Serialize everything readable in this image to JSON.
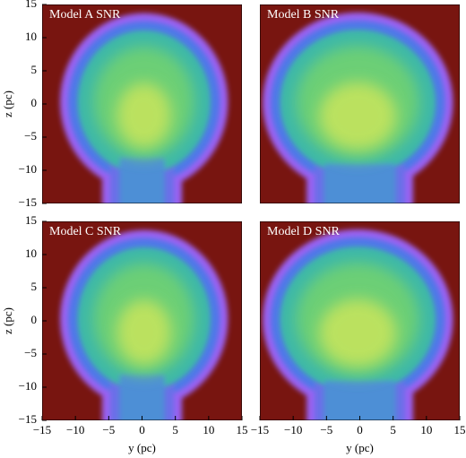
{
  "chart_data": [
    {
      "type": "image",
      "title": "Model A SNR",
      "ylabel": "z (pc)",
      "xlim": [
        -15,
        15
      ],
      "ylim": [
        -15,
        15
      ],
      "yticks": [
        15,
        10,
        5,
        0,
        {
          "value": -5,
          "label": "−5"
        },
        {
          "value": -10,
          "label": "−10"
        },
        {
          "value": -15,
          "label": "−15"
        }
      ]
    },
    {
      "type": "image",
      "title": "Model B SNR",
      "xlim": [
        -15,
        15
      ],
      "ylim": [
        -15,
        15
      ]
    },
    {
      "type": "image",
      "title": "Model C SNR",
      "xlabel": "y (pc)",
      "ylabel": "z (pc)",
      "xlim": [
        -15,
        15
      ],
      "ylim": [
        -15,
        15
      ],
      "xticks": [
        {
          "value": -15,
          "label": "−15"
        },
        {
          "value": -10,
          "label": "−10"
        },
        {
          "value": -5,
          "label": "−5"
        },
        0,
        5,
        10,
        15
      ],
      "yticks": [
        15,
        10,
        5,
        0,
        {
          "value": -5,
          "label": "−5"
        },
        {
          "value": -10,
          "label": "−10"
        },
        {
          "value": -15,
          "label": "−15"
        }
      ]
    },
    {
      "type": "image",
      "title": "Model D SNR",
      "xlabel": "y (pc)",
      "xlim": [
        -15,
        15
      ],
      "ylim": [
        -15,
        15
      ],
      "xticks": [
        {
          "value": -15,
          "label": "−15"
        },
        {
          "value": -10,
          "label": "−10"
        },
        {
          "value": -5,
          "label": "−5"
        },
        0,
        5,
        10,
        15
      ]
    }
  ]
}
